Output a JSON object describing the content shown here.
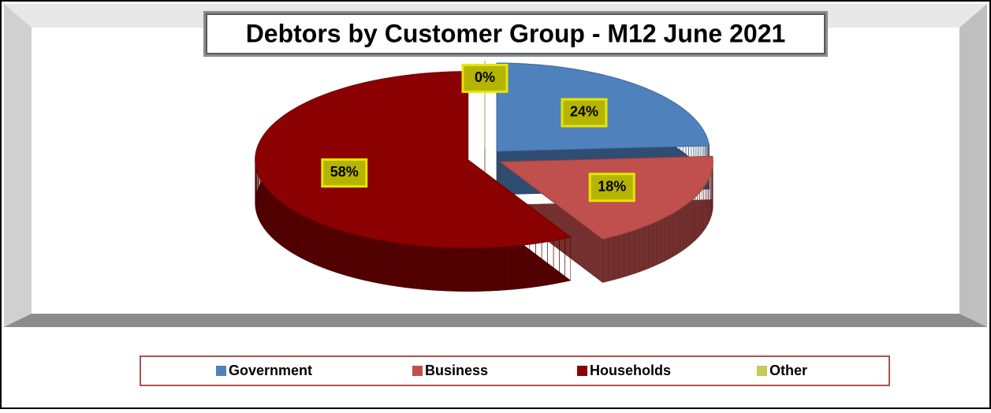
{
  "chart_data": {
    "type": "pie",
    "title": "Debtors by Customer Group - M12 June 2021",
    "categories": [
      "Government",
      "Business",
      "Households",
      "Other"
    ],
    "values": [
      24,
      18,
      58,
      0
    ],
    "value_labels": [
      "24%",
      "18%",
      "58%",
      "0%"
    ],
    "colors": [
      "#4f81bd",
      "#c0504d",
      "#8b0000",
      "#c8c85a"
    ],
    "legend": "bottom"
  }
}
